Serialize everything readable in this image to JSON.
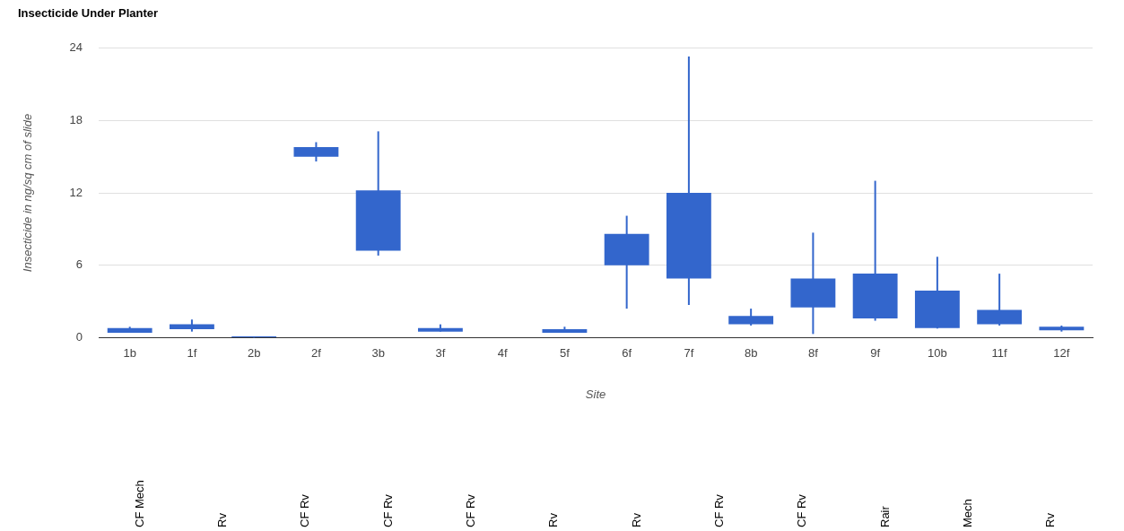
{
  "chart_data": {
    "type": "candlestick",
    "title": "Insecticide Under Planter",
    "xlabel": "Site",
    "ylabel": "Insecticide in ng/sq cm of slide",
    "categories": [
      "1b",
      "1f",
      "2b",
      "2f",
      "3b",
      "3f",
      "4f",
      "5f",
      "6f",
      "7f",
      "8b",
      "8f",
      "9f",
      "10b",
      "11f",
      "12f"
    ],
    "ohlc": [
      [
        0.8,
        0.9,
        0.4,
        0.4
      ],
      [
        1.1,
        1.5,
        0.5,
        0.7
      ],
      [
        0.1,
        0.1,
        0,
        0
      ],
      [
        15.8,
        16.2,
        14.6,
        15.0
      ],
      [
        12.2,
        17.1,
        6.8,
        7.2
      ],
      [
        0.8,
        1.1,
        0.5,
        0.5
      ],
      null,
      [
        0.7,
        0.9,
        0.4,
        0.4
      ],
      [
        8.6,
        10.1,
        2.4,
        6.0
      ],
      [
        12.0,
        23.3,
        2.7,
        4.9
      ],
      [
        1.8,
        2.4,
        1.0,
        1.1
      ],
      [
        4.9,
        8.7,
        0.3,
        2.5
      ],
      [
        5.3,
        13.0,
        1.4,
        1.6
      ],
      [
        3.9,
        6.7,
        0.75,
        0.8
      ],
      [
        2.3,
        5.3,
        1.0,
        1.1
      ],
      [
        0.9,
        1.0,
        0.5,
        0.6
      ]
    ],
    "color": "#3366cc",
    "ylim": [
      0,
      24
    ],
    "yticks": [
      0,
      6,
      12,
      18,
      24
    ],
    "grid": "y",
    "legend": false,
    "annotations": [
      "CF Mech",
      "Rv",
      "CF Rv",
      "CF Rv",
      "CF Rv",
      "Rv",
      "Rv",
      "CF Rv",
      "CF Rv",
      "Rair",
      "Mech",
      "Rv"
    ]
  }
}
